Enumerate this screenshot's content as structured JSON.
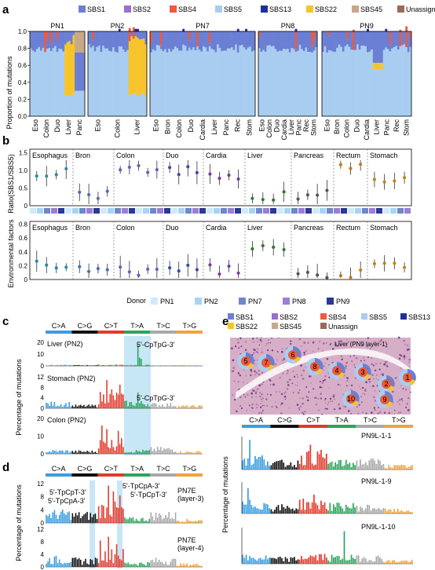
{
  "panel_labels": {
    "a": "a",
    "b": "b",
    "c": "c",
    "d": "d",
    "e": "e"
  },
  "colors": {
    "SBS1": "#6b7fd4",
    "SBS2": "#9b6fd0",
    "SBS4": "#ee5a3c",
    "SBS5": "#a8cdf0",
    "SBS13": "#1f2f9a",
    "SBS22": "#f7c52b",
    "SBS45": "#c7a98a",
    "Unassign": "#9c6a5a",
    "CtoA": "#3a9de0",
    "CtoG": "#111111",
    "CtoT": "#e2392b",
    "TtoA": "#2aa65a",
    "TtoC": "#a8a8a8",
    "TtoG": "#f0a43a",
    "PN1": "#cfeafb",
    "PN2": "#a8d4f4",
    "PN7": "#6f86c9",
    "PN8": "#9a7fd6",
    "PN9": "#2b3896"
  },
  "panel_a": {
    "legend": [
      "SBS1",
      "SBS2",
      "SBS4",
      "SBS5",
      "SBS13",
      "SBS22",
      "SBS45",
      "Unassign"
    ],
    "ylabel": "Proportion of mutations",
    "yticks": [
      "0.0",
      "0.2",
      "0.4",
      "0.6",
      "0.8",
      "1.0"
    ],
    "donors": [
      {
        "name": "PN1",
        "tissues": [
          "Eso",
          "Colon",
          "Duo",
          "Liver",
          "Panc"
        ]
      },
      {
        "name": "PN2",
        "tissues": [
          "Eso",
          "Colon",
          "Liver"
        ]
      },
      {
        "name": "PN7",
        "tissues": [
          "Eso",
          "Bron",
          "Colon",
          "Duo",
          "Cardia",
          "Liver",
          "Panc",
          "Rec",
          "Stom"
        ]
      },
      {
        "name": "PN8",
        "tissues": [
          "Eso",
          "Colon",
          "Duo",
          "Cardia",
          "Liver",
          "Panc",
          "Rec",
          "Stom"
        ]
      },
      {
        "name": "PN9",
        "tissues": [
          "Eso",
          "Bron",
          "Colon",
          "Duo",
          "Cardia",
          "Liver",
          "Panc",
          "Rec",
          "Stom"
        ]
      }
    ]
  },
  "panel_b": {
    "top_ylabel": "Ratio(SBS1/SBS5)",
    "bottom_ylabel": "Environmental factors",
    "top_yticks": [
      "0",
      "0.5",
      "1.0",
      "1.5"
    ],
    "bottom_yticks": [
      "0",
      "0.2",
      "0.4",
      "0.6",
      "0.8"
    ],
    "tissues": [
      "Esophagus",
      "Bron",
      "Colon",
      "Duo",
      "Cardia",
      "Liver",
      "Pancreas",
      "Rectum",
      "Stomach"
    ],
    "legend_title": "Donor",
    "legend": [
      "PN1",
      "PN2",
      "PN7",
      "PN8",
      "PN9"
    ]
  },
  "panel_c": {
    "classes": [
      "C>A",
      "C>G",
      "C>T",
      "T>A",
      "T>C",
      "T>G"
    ],
    "ylabel": "Percentage of mutations",
    "tracks": [
      {
        "label": "Liver (PN2)",
        "yticks": [
          "0",
          "10",
          "20"
        ],
        "annotation": "5'-CpTpG-3'"
      },
      {
        "label": "Stomach (PN2)",
        "yticks": [
          "0",
          "4",
          "8",
          "12"
        ],
        "annotation": "5'-CpTpG-3'"
      },
      {
        "label": "Colon (PN2)",
        "yticks": [
          "0",
          "10",
          "20"
        ],
        "annotation": ""
      }
    ]
  },
  "panel_d": {
    "classes": [
      "C>A",
      "C>G",
      "C>T",
      "T>A",
      "T>C",
      "T>G"
    ],
    "ylabel": "Percentage of mutations",
    "tracks": [
      {
        "label1": "PN7E",
        "label2": "(layer-3)",
        "yticks": [
          "0",
          "4",
          "8",
          "12"
        ]
      },
      {
        "label1": "PN7E",
        "label2": "(layer-4)",
        "yticks": [
          "0",
          "4",
          "8",
          "12"
        ]
      }
    ],
    "annotations": [
      "5'-TpCpT-3'",
      "5'-TpCpA-3'",
      "5'-TpCpA-3'",
      "5'-TpCpT-3'"
    ]
  },
  "panel_e": {
    "legend": [
      "SBS1",
      "SBS2",
      "SBS4",
      "SBS5",
      "SBS13",
      "SBS22",
      "SBS45",
      "Unassign"
    ],
    "image_label": "Liver (PN9 layer-1)",
    "spots": [
      "5",
      "7",
      "6",
      "8",
      "4",
      "3",
      "2",
      "1",
      "10",
      "9"
    ],
    "classes": [
      "C>A",
      "C>G",
      "C>T",
      "T>A",
      "T>C",
      "T>G"
    ],
    "ylabel": "Percentage of mutations",
    "tracks": [
      "PN9L-1-1",
      "PN9L-1-9",
      "PN9L-1-10"
    ]
  }
}
